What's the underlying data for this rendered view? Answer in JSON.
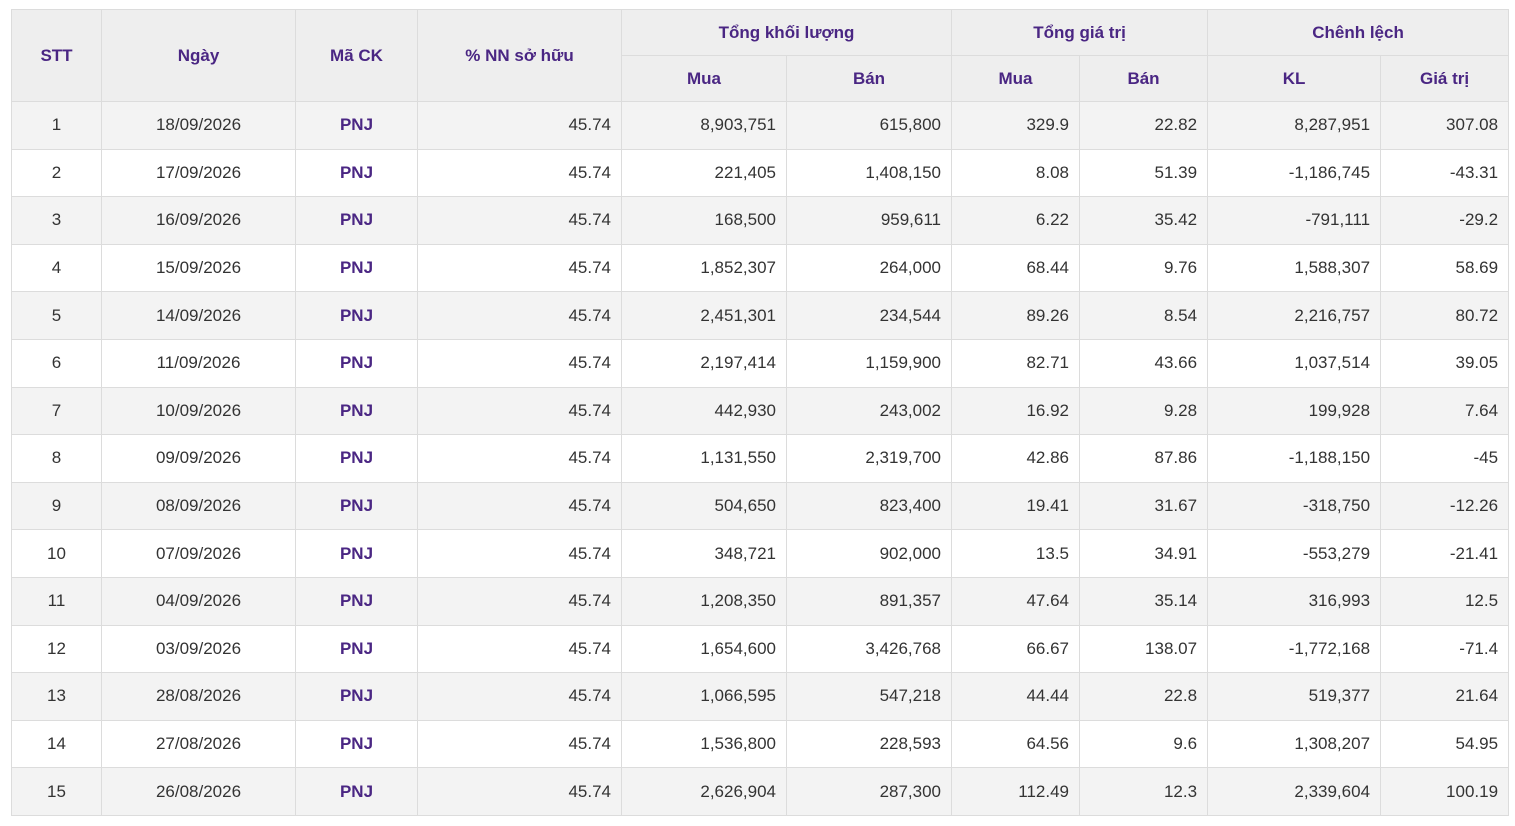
{
  "headers": {
    "stt": "STT",
    "date": "Ngày",
    "code": "Mã CK",
    "ownership": "% NN sở hữu",
    "total_volume": "Tổng khối lượng",
    "total_value": "Tổng giá trị",
    "difference": "Chênh lệch",
    "buy": "Mua",
    "sell": "Bán",
    "kl": "KL",
    "value": "Giá trị"
  },
  "colors": {
    "header_text": "#4a2683",
    "header_bg": "#eeeeee",
    "row_alt_bg": "#f3f3f3"
  },
  "rows": [
    {
      "stt": "1",
      "date": "18/09/2026",
      "code": "PNJ",
      "pct": "45.74",
      "vol_buy": "8,903,751",
      "vol_sell": "615,800",
      "val_buy": "329.9",
      "val_sell": "22.82",
      "diff_kl": "8,287,951",
      "diff_val": "307.08"
    },
    {
      "stt": "2",
      "date": "17/09/2026",
      "code": "PNJ",
      "pct": "45.74",
      "vol_buy": "221,405",
      "vol_sell": "1,408,150",
      "val_buy": "8.08",
      "val_sell": "51.39",
      "diff_kl": "-1,186,745",
      "diff_val": "-43.31"
    },
    {
      "stt": "3",
      "date": "16/09/2026",
      "code": "PNJ",
      "pct": "45.74",
      "vol_buy": "168,500",
      "vol_sell": "959,611",
      "val_buy": "6.22",
      "val_sell": "35.42",
      "diff_kl": "-791,111",
      "diff_val": "-29.2"
    },
    {
      "stt": "4",
      "date": "15/09/2026",
      "code": "PNJ",
      "pct": "45.74",
      "vol_buy": "1,852,307",
      "vol_sell": "264,000",
      "val_buy": "68.44",
      "val_sell": "9.76",
      "diff_kl": "1,588,307",
      "diff_val": "58.69"
    },
    {
      "stt": "5",
      "date": "14/09/2026",
      "code": "PNJ",
      "pct": "45.74",
      "vol_buy": "2,451,301",
      "vol_sell": "234,544",
      "val_buy": "89.26",
      "val_sell": "8.54",
      "diff_kl": "2,216,757",
      "diff_val": "80.72"
    },
    {
      "stt": "6",
      "date": "11/09/2026",
      "code": "PNJ",
      "pct": "45.74",
      "vol_buy": "2,197,414",
      "vol_sell": "1,159,900",
      "val_buy": "82.71",
      "val_sell": "43.66",
      "diff_kl": "1,037,514",
      "diff_val": "39.05"
    },
    {
      "stt": "7",
      "date": "10/09/2026",
      "code": "PNJ",
      "pct": "45.74",
      "vol_buy": "442,930",
      "vol_sell": "243,002",
      "val_buy": "16.92",
      "val_sell": "9.28",
      "diff_kl": "199,928",
      "diff_val": "7.64"
    },
    {
      "stt": "8",
      "date": "09/09/2026",
      "code": "PNJ",
      "pct": "45.74",
      "vol_buy": "1,131,550",
      "vol_sell": "2,319,700",
      "val_buy": "42.86",
      "val_sell": "87.86",
      "diff_kl": "-1,188,150",
      "diff_val": "-45"
    },
    {
      "stt": "9",
      "date": "08/09/2026",
      "code": "PNJ",
      "pct": "45.74",
      "vol_buy": "504,650",
      "vol_sell": "823,400",
      "val_buy": "19.41",
      "val_sell": "31.67",
      "diff_kl": "-318,750",
      "diff_val": "-12.26"
    },
    {
      "stt": "10",
      "date": "07/09/2026",
      "code": "PNJ",
      "pct": "45.74",
      "vol_buy": "348,721",
      "vol_sell": "902,000",
      "val_buy": "13.5",
      "val_sell": "34.91",
      "diff_kl": "-553,279",
      "diff_val": "-21.41"
    },
    {
      "stt": "11",
      "date": "04/09/2026",
      "code": "PNJ",
      "pct": "45.74",
      "vol_buy": "1,208,350",
      "vol_sell": "891,357",
      "val_buy": "47.64",
      "val_sell": "35.14",
      "diff_kl": "316,993",
      "diff_val": "12.5"
    },
    {
      "stt": "12",
      "date": "03/09/2026",
      "code": "PNJ",
      "pct": "45.74",
      "vol_buy": "1,654,600",
      "vol_sell": "3,426,768",
      "val_buy": "66.67",
      "val_sell": "138.07",
      "diff_kl": "-1,772,168",
      "diff_val": "-71.4"
    },
    {
      "stt": "13",
      "date": "28/08/2026",
      "code": "PNJ",
      "pct": "45.74",
      "vol_buy": "1,066,595",
      "vol_sell": "547,218",
      "val_buy": "44.44",
      "val_sell": "22.8",
      "diff_kl": "519,377",
      "diff_val": "21.64"
    },
    {
      "stt": "14",
      "date": "27/08/2026",
      "code": "PNJ",
      "pct": "45.74",
      "vol_buy": "1,536,800",
      "vol_sell": "228,593",
      "val_buy": "64.56",
      "val_sell": "9.6",
      "diff_kl": "1,308,207",
      "diff_val": "54.95"
    },
    {
      "stt": "15",
      "date": "26/08/2026",
      "code": "PNJ",
      "pct": "45.74",
      "vol_buy": "2,626,904",
      "vol_sell": "287,300",
      "val_buy": "112.49",
      "val_sell": "12.3",
      "diff_kl": "2,339,604",
      "diff_val": "100.19"
    }
  ]
}
